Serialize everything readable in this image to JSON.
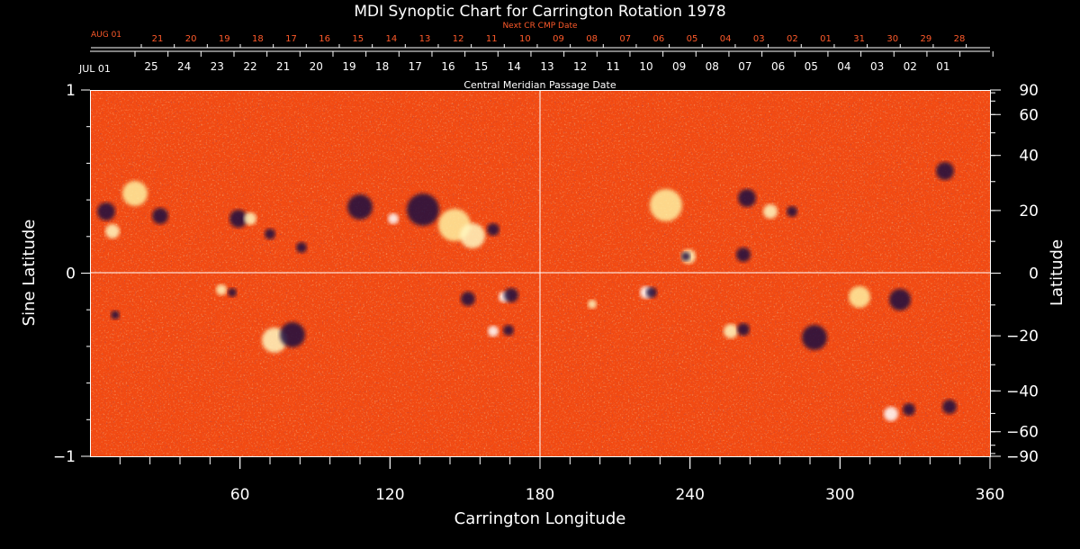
{
  "colors": {
    "background": "#000000",
    "text": "#ffffff",
    "next_rotation_text": "#ff5a2a",
    "map_base": "#f24a12",
    "positive_polarity": "#fff5b0",
    "negative_polarity": "#1a1040"
  },
  "chart_data": {
    "type": "heatmap",
    "title": "MDI Synoptic Chart for Carrington Rotation 1978",
    "xlabel": "Carrington Longitude",
    "ylabel_left": "Sine Latitude",
    "ylabel_right": "Latitude",
    "xlim": [
      0,
      360
    ],
    "ylim": [
      -1,
      1
    ],
    "x_ticks": [
      60,
      120,
      180,
      240,
      300,
      360
    ],
    "y_ticks_left": [
      "−1",
      "0",
      "1"
    ],
    "y_ticks_right": [
      {
        "label": "90",
        "lat": 90
      },
      {
        "label": "60",
        "lat": 60
      },
      {
        "label": "40",
        "lat": 40
      },
      {
        "label": "20",
        "lat": 20
      },
      {
        "label": "0",
        "lat": 0
      },
      {
        "label": "−20",
        "lat": -20
      },
      {
        "label": "−40",
        "lat": -40
      },
      {
        "label": "−60",
        "lat": -60
      },
      {
        "label": "−90",
        "lat": -90
      }
    ],
    "top_axis": {
      "label": "Central Meridian Passage Date",
      "month_label": "JUL 01",
      "dates": [
        "25",
        "24",
        "23",
        "22",
        "21",
        "20",
        "19",
        "18",
        "17",
        "16",
        "15",
        "14",
        "13",
        "12",
        "11",
        "10",
        "09",
        "08",
        "07",
        "06",
        "05",
        "04",
        "03",
        "02",
        "01"
      ]
    },
    "next_axis": {
      "label": "Next CR CMP Date",
      "month_label": "AUG 01",
      "dates": [
        "21",
        "20",
        "19",
        "18",
        "17",
        "16",
        "15",
        "14",
        "13",
        "12",
        "11",
        "10",
        "09",
        "08",
        "07",
        "06",
        "05",
        "04",
        "03",
        "02",
        "01",
        "31",
        "30",
        "29",
        "28"
      ]
    },
    "gridlines": {
      "vertical_at_longitude": 180,
      "horizontal_at_sine_latitude": 0
    }
  }
}
